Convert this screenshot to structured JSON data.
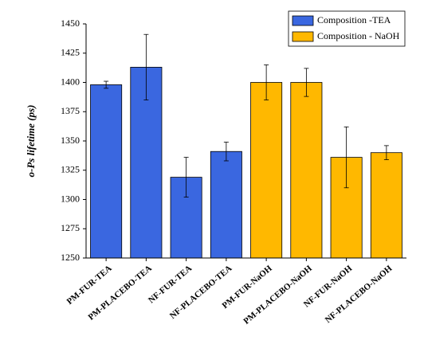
{
  "chart_data": {
    "type": "bar",
    "y_label": "o-Ps lifetime (ps)",
    "categories": [
      "PM-FUR-TEA",
      "PM-PLACEBO-TEA",
      "NF-FUR-TEA",
      "NF-PLACEBO-TEA",
      "PM-FUR-NaOH",
      "PM-PLACEBO-NaOH",
      "NF-FUR-NaOH",
      "NF-PLACEBO-NaOH"
    ],
    "series": [
      {
        "name": "Composition -TEA",
        "color": "#3a67e0",
        "values": [
          1398,
          1413,
          1319,
          1341,
          null,
          null,
          null,
          null
        ],
        "errors": [
          3,
          28,
          17,
          8,
          null,
          null,
          null,
          null
        ]
      },
      {
        "name": "Composition - NaOH",
        "color": "#ffb800",
        "values": [
          null,
          null,
          null,
          null,
          1400,
          1400,
          1336,
          1340
        ],
        "errors": [
          null,
          null,
          null,
          null,
          15,
          12,
          26,
          6
        ]
      }
    ],
    "ylim": [
      1250,
      1450
    ],
    "yticks": [
      1250,
      1275,
      1300,
      1325,
      1350,
      1375,
      1400,
      1425,
      1450
    ],
    "legend": "top-right"
  }
}
